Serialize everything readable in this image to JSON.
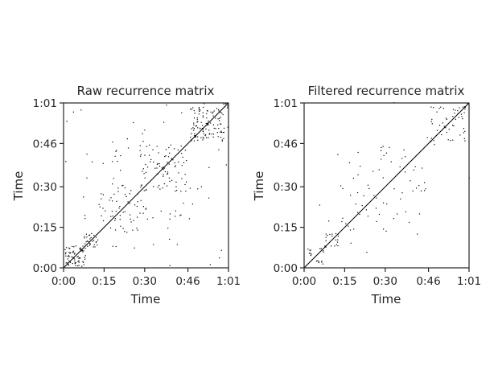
{
  "chart_data": [
    {
      "type": "heatmap",
      "title": "Raw recurrence matrix",
      "xlabel": "Time",
      "ylabel": "Time",
      "xlim": [
        0,
        61
      ],
      "ylim": [
        0,
        61
      ],
      "x_ticks": [
        0,
        15,
        30,
        46,
        61
      ],
      "y_ticks": [
        0,
        15,
        30,
        46,
        61
      ],
      "x_tick_labels": [
        "0:00",
        "0:15",
        "0:30",
        "0:46",
        "1:01"
      ],
      "y_tick_labels": [
        "0:00",
        "0:15",
        "0:30",
        "0:46",
        "1:01"
      ],
      "grid": false,
      "colormap": "binary",
      "colors": {
        "background": "#ffffff",
        "point": "#000000"
      },
      "symmetric": true,
      "structure": [
        {
          "x_range": [
            0,
            7.5
          ],
          "y_range": [
            0,
            7.5
          ],
          "density": 0.75
        },
        {
          "x_range": [
            7.5,
            12.5
          ],
          "y_range": [
            7.5,
            12.5
          ],
          "density": 0.55
        },
        {
          "x_range": [
            12.5,
            30
          ],
          "y_range": [
            12.5,
            30
          ],
          "density": 0.14
        },
        {
          "x_range": [
            28,
            45
          ],
          "y_range": [
            28,
            45
          ],
          "density": 0.16
        },
        {
          "x_range": [
            14,
            30
          ],
          "y_range": [
            28,
            45
          ],
          "density": 0.06
        },
        {
          "x_range": [
            45,
            51
          ],
          "y_range": [
            12,
            30
          ],
          "density": 0.05
        },
        {
          "x_range": [
            45,
            61
          ],
          "y_range": [
            45,
            61
          ],
          "density": 0.04
        },
        {
          "x_range": [
            46.5,
            59
          ],
          "y_range": [
            46.5,
            59
          ],
          "density": 0.42
        },
        {
          "x_range": [
            59,
            61
          ],
          "y_range": [
            59,
            61
          ],
          "density": 0.8
        },
        {
          "x_range": [
            0,
            61
          ],
          "y_range": [
            0,
            61
          ],
          "density": 0.012
        }
      ]
    },
    {
      "type": "heatmap",
      "title": "Filtered recurrence matrix",
      "xlabel": "Time",
      "ylabel": "Time",
      "xlim": [
        0,
        61
      ],
      "ylim": [
        0,
        61
      ],
      "x_ticks": [
        0,
        15,
        30,
        46,
        61
      ],
      "y_ticks": [
        0,
        15,
        30,
        46,
        61
      ],
      "x_tick_labels": [
        "0:00",
        "0:15",
        "0:30",
        "0:46",
        "1:01"
      ],
      "y_tick_labels": [
        "0:00",
        "0:15",
        "0:30",
        "0:46",
        "1:01"
      ],
      "grid": false,
      "colormap": "binary",
      "colors": {
        "background": "#ffffff",
        "point": "#000000"
      },
      "symmetric": true,
      "structure": [
        {
          "x_range": [
            0,
            7.5
          ],
          "y_range": [
            0,
            7.5
          ],
          "density": 0.3
        },
        {
          "x_range": [
            7.5,
            12.5
          ],
          "y_range": [
            7.5,
            12.5
          ],
          "density": 0.35
        },
        {
          "x_range": [
            12.5,
            30
          ],
          "y_range": [
            12.5,
            30
          ],
          "density": 0.05
        },
        {
          "x_range": [
            28,
            45
          ],
          "y_range": [
            28,
            45
          ],
          "density": 0.06
        },
        {
          "x_range": [
            30,
            45
          ],
          "y_range": [
            12,
            28
          ],
          "density": 0.02
        },
        {
          "x_range": [
            46.5,
            59
          ],
          "y_range": [
            46.5,
            59
          ],
          "density": 0.22
        },
        {
          "x_range": [
            59,
            61
          ],
          "y_range": [
            59,
            61
          ],
          "density": 0.7
        },
        {
          "x_range": [
            0,
            61
          ],
          "y_range": [
            0,
            61
          ],
          "density": 0.003
        }
      ]
    }
  ]
}
